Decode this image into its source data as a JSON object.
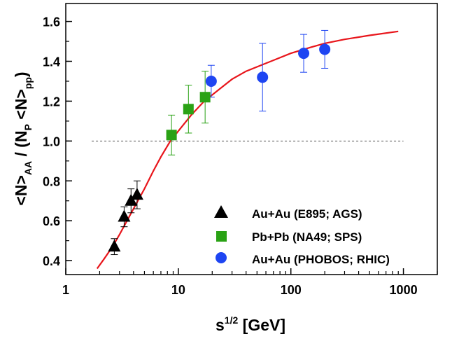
{
  "chart_data": {
    "type": "scatter",
    "title": "",
    "xscale": "log",
    "xlim": [
      1,
      2000
    ],
    "ylim": [
      0.33,
      1.69
    ],
    "xticks": [
      1,
      10,
      100,
      1000
    ],
    "xtick_labels": [
      "1",
      "10",
      "100",
      "1000"
    ],
    "yticks": [
      0.4,
      0.6,
      0.8,
      1.0,
      1.2,
      1.4,
      1.6
    ],
    "ytick_labels": [
      "0.4",
      "0.6",
      "0.8",
      "1.0",
      "1.2",
      "1.4",
      "1.6"
    ],
    "xlabel": {
      "base": "s",
      "sup": "1/2",
      "rest": " [GeV]"
    },
    "ylabel": {
      "p1": "<N>",
      "s1": "AA",
      "p2": " / (N",
      "s2": "P",
      "p3": " <N>",
      "s3": "pp",
      "p4": ")"
    },
    "reference_line": {
      "y": 1.0,
      "x_from": 1.7,
      "x_to": 1000,
      "style": "dotted",
      "color": "#555555"
    },
    "curve": {
      "color": "#e8151b",
      "points": [
        [
          1.9,
          0.36
        ],
        [
          2.2,
          0.41
        ],
        [
          2.6,
          0.47
        ],
        [
          3.0,
          0.53
        ],
        [
          3.5,
          0.6
        ],
        [
          4.0,
          0.66
        ],
        [
          5.0,
          0.76
        ],
        [
          6.0,
          0.85
        ],
        [
          7.0,
          0.92
        ],
        [
          8.5,
          1.0
        ],
        [
          10,
          1.05
        ],
        [
          13,
          1.13
        ],
        [
          17,
          1.2
        ],
        [
          22,
          1.25
        ],
        [
          30,
          1.31
        ],
        [
          40,
          1.35
        ],
        [
          60,
          1.39
        ],
        [
          100,
          1.44
        ],
        [
          150,
          1.47
        ],
        [
          200,
          1.49
        ],
        [
          300,
          1.51
        ],
        [
          500,
          1.53
        ],
        [
          900,
          1.55
        ]
      ]
    },
    "series": [
      {
        "name": "Au+Au (E895; AGS)",
        "marker": "triangle",
        "color": "#000000",
        "errcolor": "#000000",
        "points": [
          {
            "x": 2.7,
            "y": 0.47,
            "err": 0.04
          },
          {
            "x": 3.3,
            "y": 0.62,
            "err": 0.05
          },
          {
            "x": 3.8,
            "y": 0.7,
            "err": 0.06
          },
          {
            "x": 4.3,
            "y": 0.73,
            "err": 0.07
          }
        ]
      },
      {
        "name": "Pb+Pb (NA49; SPS)",
        "marker": "square",
        "color": "#2aa215",
        "errcolor": "#2aa215",
        "points": [
          {
            "x": 8.7,
            "y": 1.03,
            "err": 0.1
          },
          {
            "x": 12.3,
            "y": 1.16,
            "err": 0.12
          },
          {
            "x": 17.3,
            "y": 1.22,
            "err": 0.13
          }
        ]
      },
      {
        "name": "Au+Au (PHOBOS; RHIC)",
        "marker": "circle",
        "color": "#1e45f2",
        "errcolor": "#1e45f2",
        "points": [
          {
            "x": 19.6,
            "y": 1.3,
            "err": 0.08
          },
          {
            "x": 56,
            "y": 1.32,
            "err": 0.17
          },
          {
            "x": 130,
            "y": 1.44,
            "err": 0.095
          },
          {
            "x": 200,
            "y": 1.46,
            "err": 0.095
          }
        ]
      }
    ],
    "legend_position": "bottom-right"
  }
}
